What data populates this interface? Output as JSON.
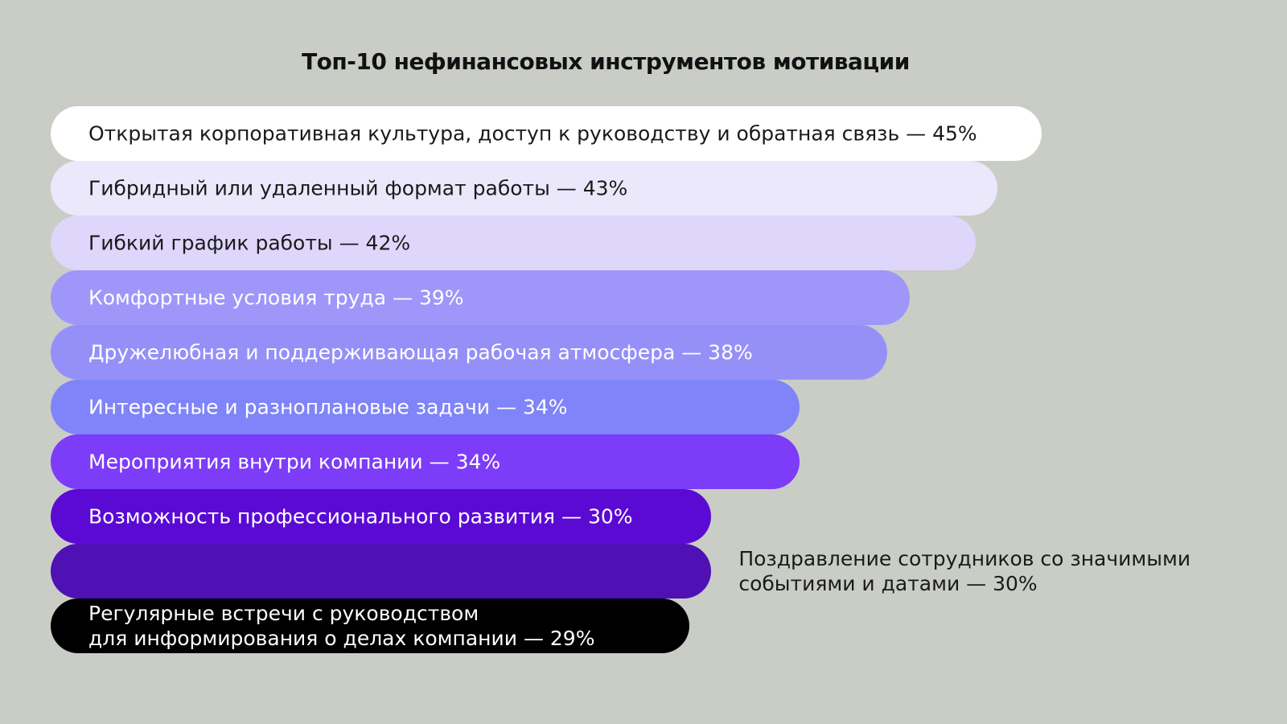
{
  "chart_data": {
    "type": "bar",
    "orientation": "horizontal",
    "title": "Топ-10 нефинансовых инструментов мотивации",
    "categories": [
      "Открытая корпоративная культура, доступ к руководству и обратная связь",
      "Гибридный или удаленный формат работы",
      "Гибкий график работы",
      "Комфортные условия труда",
      "Дружелюбная и поддерживающая рабочая атмосфера",
      "Интересные и разноплановые задачи",
      "Мероприятия внутри компании",
      "Возможность профессионального развития",
      "Поздравление сотрудников со значимыми событиями и датами",
      "Регулярные встречи с руководством\nдля информирования о делах компании"
    ],
    "values": [
      45,
      43,
      42,
      39,
      38,
      34,
      34,
      30,
      30,
      29
    ],
    "value_labels": [
      "— 45%",
      "— 43%",
      "— 42%",
      "— 39%",
      "— 38%",
      "— 34%",
      "— 34%",
      "— 30%",
      "— 30%",
      "— 29%"
    ],
    "colors": [
      "#ffffff",
      "#ebe8fb",
      "#dfd6fb",
      "#9f96fa",
      "#9590f8",
      "#7f84f8",
      "#7c3cf8",
      "#5b0ad4",
      "#4f10b4",
      "#000000"
    ]
  }
}
